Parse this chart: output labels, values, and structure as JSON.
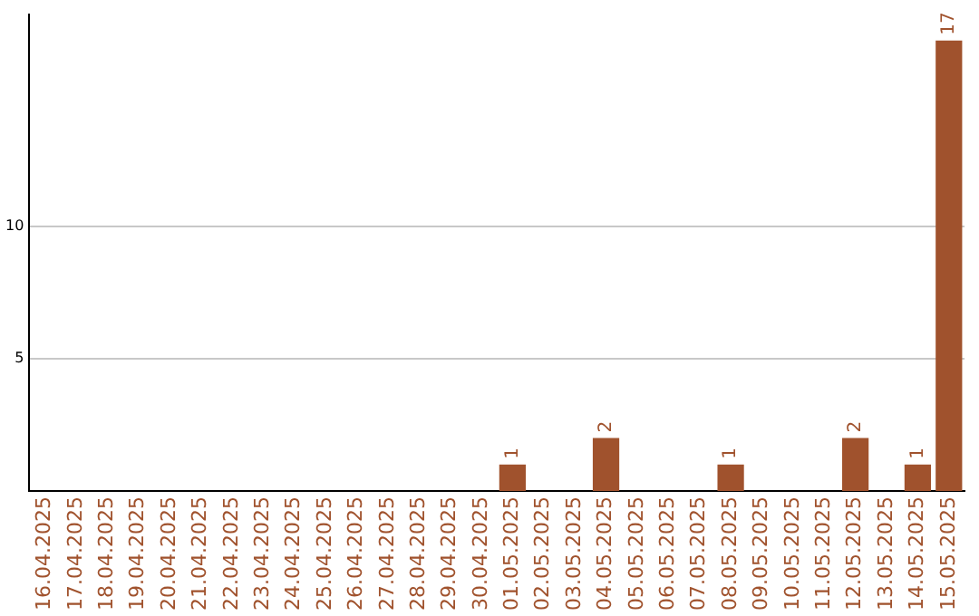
{
  "chart_data": {
    "type": "bar",
    "categories": [
      "16.04.2025",
      "17.04.2025",
      "18.04.2025",
      "19.04.2025",
      "20.04.2025",
      "21.04.2025",
      "22.04.2025",
      "23.04.2025",
      "24.04.2025",
      "25.04.2025",
      "26.04.2025",
      "27.04.2025",
      "28.04.2025",
      "29.04.2025",
      "30.04.2025",
      "01.05.2025",
      "02.05.2025",
      "03.05.2025",
      "04.05.2025",
      "05.05.2025",
      "06.05.2025",
      "07.05.2025",
      "08.05.2025",
      "09.05.2025",
      "10.05.2025",
      "11.05.2025",
      "12.05.2025",
      "13.05.2025",
      "14.05.2025",
      "15.05.2025"
    ],
    "values": [
      0,
      0,
      0,
      0,
      0,
      0,
      0,
      0,
      0,
      0,
      0,
      0,
      0,
      0,
      0,
      1,
      0,
      0,
      2,
      0,
      0,
      0,
      1,
      0,
      0,
      0,
      2,
      0,
      1,
      17
    ],
    "value_labels": [
      null,
      null,
      null,
      null,
      null,
      null,
      null,
      null,
      null,
      null,
      null,
      null,
      null,
      null,
      null,
      "1",
      null,
      null,
      "2",
      null,
      null,
      null,
      "1",
      null,
      null,
      null,
      "2",
      null,
      "1",
      "17"
    ],
    "color": "#a0522d",
    "ylim": [
      0,
      18
    ],
    "yticks": [
      5,
      10
    ],
    "grid": "y",
    "legend": false
  }
}
